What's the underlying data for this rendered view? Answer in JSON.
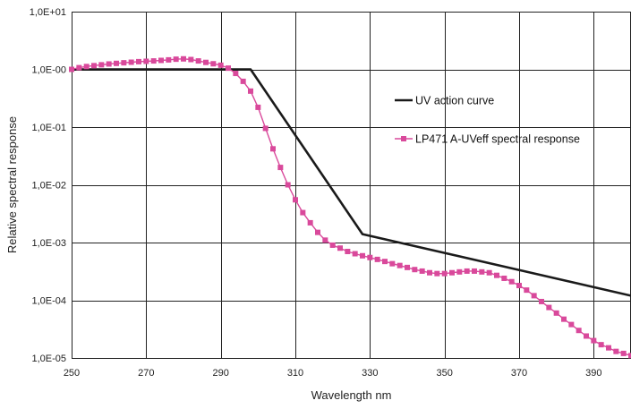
{
  "chart_data": {
    "type": "line",
    "title": "",
    "xlabel": "Wavelength nm",
    "ylabel": "Relative spectral response",
    "x_ticks": [
      250,
      270,
      290,
      310,
      330,
      350,
      370,
      390
    ],
    "xlim": [
      250,
      400
    ],
    "y_scale": "log",
    "ylim": [
      1e-05,
      10
    ],
    "y_tick_values": [
      1e-05,
      0.0001,
      0.001,
      0.01,
      0.1,
      1,
      10
    ],
    "y_tick_labels": [
      "1,0E-05",
      "1,0E-04",
      "1,0E-03",
      "1,0E-02",
      "1,0E-01",
      "1,0E-00",
      "1,0E+01"
    ],
    "grid": true,
    "legend_placement": "right",
    "series": [
      {
        "name": "UV action curve",
        "color": "#1a1a1a",
        "style": "line",
        "x": [
          250,
          298,
          328,
          400
        ],
        "y": [
          1.0,
          1.0,
          0.0014,
          0.00012
        ]
      },
      {
        "name": "LP471 A-UVeff spectral response",
        "color": "#d9499b",
        "style": "line-square-markers",
        "x": [
          250,
          252,
          254,
          256,
          258,
          260,
          262,
          264,
          266,
          268,
          270,
          272,
          274,
          276,
          278,
          280,
          282,
          284,
          286,
          288,
          290,
          292,
          294,
          296,
          298,
          300,
          302,
          304,
          306,
          308,
          310,
          312,
          314,
          316,
          318,
          320,
          322,
          324,
          326,
          328,
          330,
          332,
          334,
          336,
          338,
          340,
          342,
          344,
          346,
          348,
          350,
          352,
          354,
          356,
          358,
          360,
          362,
          364,
          366,
          368,
          370,
          372,
          374,
          376,
          378,
          380,
          382,
          384,
          386,
          388,
          390,
          392,
          394,
          396,
          398,
          400
        ],
        "y": [
          1.0,
          1.07,
          1.12,
          1.16,
          1.2,
          1.24,
          1.27,
          1.3,
          1.33,
          1.36,
          1.38,
          1.4,
          1.43,
          1.46,
          1.5,
          1.52,
          1.48,
          1.4,
          1.32,
          1.25,
          1.18,
          1.05,
          0.85,
          0.62,
          0.42,
          0.22,
          0.095,
          0.042,
          0.02,
          0.01,
          0.0055,
          0.0033,
          0.0022,
          0.0015,
          0.0011,
          0.0009,
          0.0008,
          0.0007,
          0.00064,
          0.00059,
          0.00055,
          0.00051,
          0.00047,
          0.00043,
          0.0004,
          0.00037,
          0.00034,
          0.00032,
          0.0003,
          0.00029,
          0.00029,
          0.0003,
          0.00031,
          0.00032,
          0.00032,
          0.00031,
          0.0003,
          0.00027,
          0.00024,
          0.00021,
          0.00018,
          0.00015,
          0.00012,
          9.5e-05,
          7.5e-05,
          6e-05,
          4.7e-05,
          3.8e-05,
          3e-05,
          2.4e-05,
          2e-05,
          1.7e-05,
          1.5e-05,
          1.3e-05,
          1.2e-05,
          1.1e-05
        ]
      }
    ]
  }
}
